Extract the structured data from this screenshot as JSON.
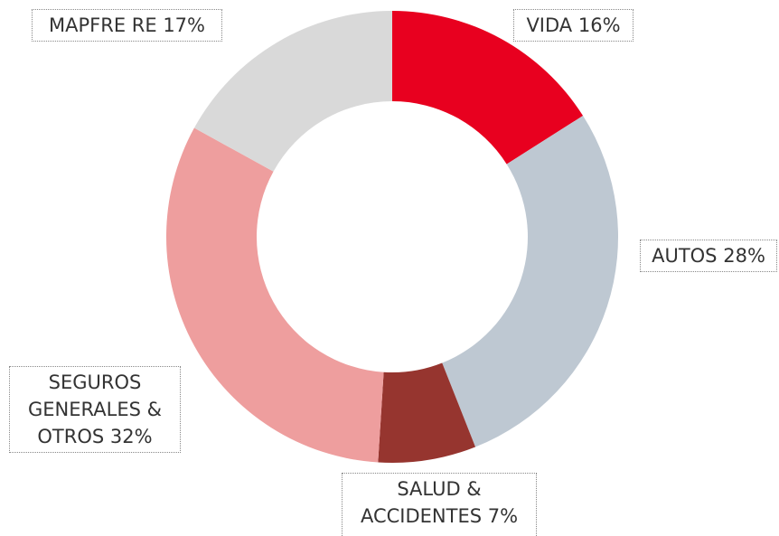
{
  "chart_data": {
    "type": "pie",
    "categories": [
      "VIDA",
      "AUTOS",
      "SALUD &",
      "SEGUROS GENERALES &",
      "MAPFRE RE"
    ],
    "values": [
      16,
      28,
      7,
      32,
      17
    ],
    "value_labels": [
      "16%",
      "28%",
      "ACCIDENTES 7%",
      "OTROS 32%",
      "17%"
    ],
    "colors": [
      "#e8001f",
      "#bec8d2",
      "#96352f",
      "#ee9e9e",
      "#d9d9d9"
    ]
  }
}
